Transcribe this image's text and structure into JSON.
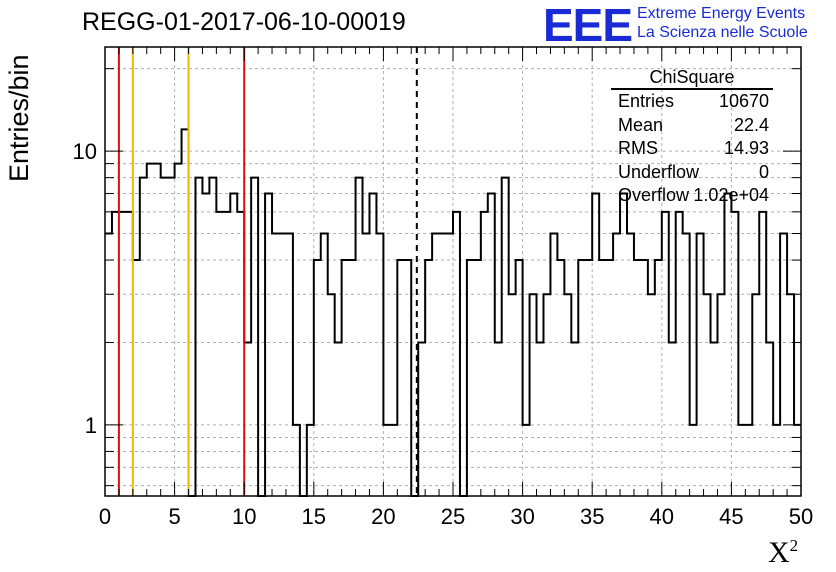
{
  "title": "REGG-01-2017-06-10-00019",
  "logo": {
    "mark": "EEE",
    "line1": "Extreme Energy Events",
    "line2": "La Scienza nelle Scuole",
    "color": "#1a2bd6"
  },
  "stats": {
    "title": "ChiSquare",
    "rows": [
      {
        "label": "Entries",
        "value": "10670"
      },
      {
        "label": "Mean",
        "value": "22.4"
      },
      {
        "label": "RMS",
        "value": "14.93"
      },
      {
        "label": "Underflow",
        "value": "0"
      },
      {
        "label": "Overflow",
        "value": "1.02e+04"
      }
    ]
  },
  "chart_data": {
    "type": "histogram",
    "title": "REGG-01-2017-06-10-00019",
    "xlabel": "X",
    "xlabel_superscript": "2",
    "ylabel": "Entries/bin",
    "xlim": [
      0,
      50
    ],
    "ylim": [
      0.55,
      24
    ],
    "yscale": "log",
    "grid": true,
    "bin_width": 0.5,
    "values": [
      5,
      6,
      6,
      6,
      4,
      8,
      9,
      9,
      8,
      8,
      9,
      12,
      0,
      8,
      7,
      8,
      6,
      6,
      7,
      6,
      2,
      8,
      0,
      7,
      5,
      5,
      5,
      1,
      0,
      1,
      4,
      5,
      3,
      2,
      4,
      4,
      8,
      5,
      7,
      5,
      1,
      1,
      4,
      4,
      0,
      2,
      4,
      5,
      5,
      5,
      6,
      0,
      4,
      4,
      6,
      7,
      2,
      8,
      3,
      4,
      1,
      3,
      2,
      3,
      5,
      4,
      3,
      2,
      4,
      4,
      7,
      4,
      4,
      5,
      7,
      5,
      4,
      4,
      3,
      4,
      6,
      2,
      6,
      5,
      1,
      5,
      3,
      2,
      3,
      7,
      6,
      1,
      1,
      3,
      6,
      2,
      1,
      5,
      3,
      1
    ],
    "vlines": [
      {
        "x": 1,
        "color": "#dd1111",
        "style": "solid"
      },
      {
        "x": 2,
        "color": "#f0b800",
        "style": "solid"
      },
      {
        "x": 6,
        "color": "#f0b800",
        "style": "solid"
      },
      {
        "x": 10,
        "color": "#dd1111",
        "style": "solid"
      },
      {
        "x": 22.4,
        "color": "#000000",
        "style": "dashed"
      }
    ],
    "xticks": [
      0,
      5,
      10,
      15,
      20,
      25,
      30,
      35,
      40,
      45,
      50
    ],
    "yticks": [
      1,
      10
    ]
  }
}
